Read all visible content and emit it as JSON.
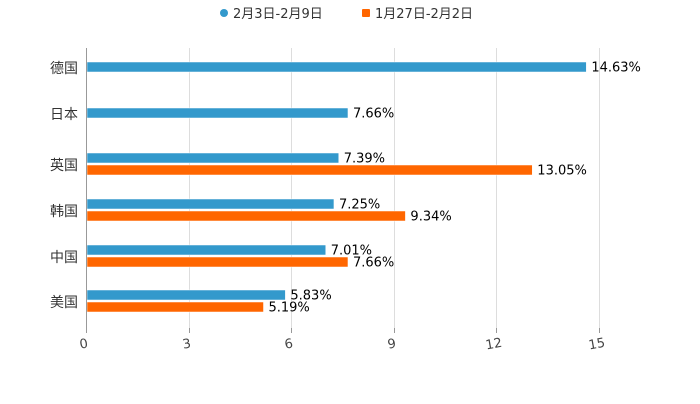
{
  "chart_data": {
    "type": "bar",
    "orientation": "horizontal",
    "title": "",
    "xlabel": "",
    "ylabel": "",
    "xlim": [
      0,
      15
    ],
    "x_ticks": [
      "0",
      "3",
      "6",
      "9",
      "12",
      "15"
    ],
    "categories": [
      "德国",
      "日本",
      "英国",
      "韩国",
      "中国",
      "美国"
    ],
    "series": [
      {
        "name": "2月3日-2月9日",
        "color": "#3399cc",
        "values": [
          14.63,
          7.66,
          7.39,
          7.25,
          7.01,
          5.83
        ],
        "labels": [
          "14.63%",
          "7.66%",
          "7.39%",
          "7.25%",
          "7.01%",
          "5.83%"
        ]
      },
      {
        "name": "1月27日-2月2日",
        "color": "#ff6600",
        "values": [
          null,
          null,
          13.05,
          9.34,
          7.66,
          5.19
        ],
        "labels": [
          null,
          null,
          "13.05%",
          "9.34%",
          "7.66%",
          "5.19%"
        ]
      }
    ],
    "grid": true,
    "legend": "top-center"
  }
}
